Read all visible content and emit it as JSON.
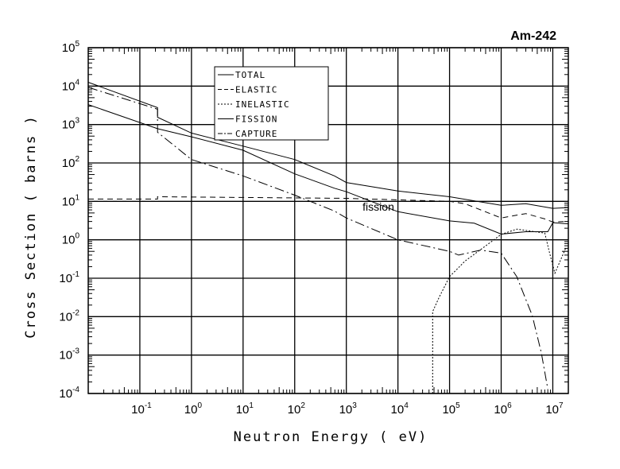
{
  "chart_data": {
    "type": "line",
    "title": "Am-242",
    "xlabel": "Neutron Energy ( eV)",
    "ylabel": "Cross Section ( barns )",
    "xscale": "log",
    "yscale": "log",
    "xlim": [
      0.01,
      20000000
    ],
    "ylim": [
      0.0001,
      100000
    ],
    "grid": true,
    "legend_position": "top-center",
    "x_ticks": [
      {
        "base": "10",
        "exp": "-1",
        "value": 0.1
      },
      {
        "base": "10",
        "exp": "0",
        "value": 1
      },
      {
        "base": "10",
        "exp": "1",
        "value": 10
      },
      {
        "base": "10",
        "exp": "2",
        "value": 100
      },
      {
        "base": "10",
        "exp": "3",
        "value": 1000
      },
      {
        "base": "10",
        "exp": "4",
        "value": 10000
      },
      {
        "base": "10",
        "exp": "5",
        "value": 100000
      },
      {
        "base": "10",
        "exp": "6",
        "value": 1000000
      },
      {
        "base": "10",
        "exp": "7",
        "value": 10000000
      }
    ],
    "y_ticks": [
      {
        "base": "10",
        "exp": "5",
        "value": 100000
      },
      {
        "base": "10",
        "exp": "4",
        "value": 10000
      },
      {
        "base": "10",
        "exp": "3",
        "value": 1000
      },
      {
        "base": "10",
        "exp": "2",
        "value": 100
      },
      {
        "base": "10",
        "exp": "1",
        "value": 10
      },
      {
        "base": "10",
        "exp": "0",
        "value": 1
      },
      {
        "base": "10",
        "exp": "-1",
        "value": 0.1
      },
      {
        "base": "10",
        "exp": "-2",
        "value": 0.01
      },
      {
        "base": "10",
        "exp": "-3",
        "value": 0.001
      },
      {
        "base": "10",
        "exp": "-4",
        "value": 0.0001
      }
    ],
    "annotations": [
      {
        "text": "fission",
        "x": 3500,
        "y": 7
      }
    ],
    "series": [
      {
        "name": "TOTAL",
        "style": "solid",
        "points": [
          [
            0.01,
            12600
          ],
          [
            0.22,
            2750
          ],
          [
            0.22,
            1550
          ],
          [
            1,
            600
          ],
          [
            10,
            275
          ],
          [
            100,
            123
          ],
          [
            589,
            46
          ],
          [
            1000,
            31
          ],
          [
            10000,
            18.6
          ],
          [
            100000,
            13.2
          ],
          [
            1000000,
            7.9
          ],
          [
            3000000,
            8.7
          ],
          [
            10000000,
            6.6
          ],
          [
            20000000,
            6.9
          ]
        ]
      },
      {
        "name": "ELASTIC",
        "style": "dashed",
        "points": [
          [
            0.01,
            11.5
          ],
          [
            0.22,
            11.5
          ],
          [
            0.22,
            13.2
          ],
          [
            1000,
            12
          ],
          [
            100000,
            10
          ],
          [
            200000,
            8.7
          ],
          [
            1000000,
            3.7
          ],
          [
            3000000,
            4.8
          ],
          [
            7000000,
            3.5
          ],
          [
            10000000,
            2.9
          ],
          [
            20000000,
            3.0
          ]
        ]
      },
      {
        "name": "INELASTIC",
        "style": "dotted",
        "points": [
          [
            47000,
            0.0001
          ],
          [
            47000,
            0.0135
          ],
          [
            63000,
            0.032
          ],
          [
            100000,
            0.11
          ],
          [
            200000,
            0.28
          ],
          [
            1000000,
            1.38
          ],
          [
            2000000,
            1.9
          ],
          [
            4000000,
            1.66
          ],
          [
            7000000,
            1.5
          ],
          [
            8500000,
            0.5
          ],
          [
            11000000,
            0.135
          ],
          [
            18000000,
            0.63
          ]
        ]
      },
      {
        "name": "FISSION",
        "style": "solid",
        "points": [
          [
            0.01,
            3300
          ],
          [
            0.22,
            780
          ],
          [
            1,
            480
          ],
          [
            10,
            214
          ],
          [
            100,
            52
          ],
          [
            589,
            22
          ],
          [
            1000,
            17.8
          ],
          [
            10000,
            5.4
          ],
          [
            100000,
            3.1
          ],
          [
            300000,
            2.7
          ],
          [
            1000000,
            1.41
          ],
          [
            3000000,
            1.62
          ],
          [
            8000000,
            1.62
          ],
          [
            10000000,
            2.8
          ],
          [
            20000000,
            2.6
          ]
        ]
      },
      {
        "name": "CAPTURE",
        "style": "dashdot",
        "points": [
          [
            0.01,
            9300
          ],
          [
            0.22,
            2500
          ],
          [
            0.22,
            630
          ],
          [
            1,
            123
          ],
          [
            10,
            46
          ],
          [
            100,
            14.5
          ],
          [
            589,
            5.6
          ],
          [
            1000,
            3.7
          ],
          [
            10000,
            1.0
          ],
          [
            100000,
            0.5
          ],
          [
            150000,
            0.4
          ],
          [
            400000,
            0.54
          ],
          [
            1000000,
            0.45
          ],
          [
            2000000,
            0.11
          ],
          [
            4000000,
            0.0107
          ],
          [
            6000000,
            0.00115
          ],
          [
            8000000,
            0.00013
          ]
        ]
      }
    ]
  }
}
